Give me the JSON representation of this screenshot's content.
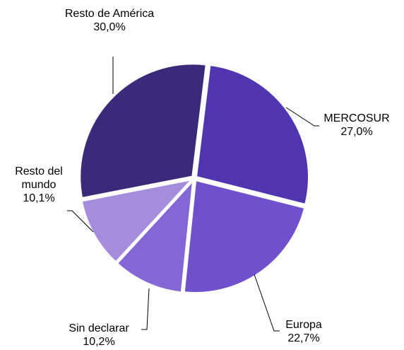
{
  "chart_data": {
    "type": "pie",
    "categories": [
      "MERCOSUR",
      "Europa",
      "Sin declarar",
      "Resto del mundo",
      "Resto de América"
    ],
    "values": [
      27.0,
      22.7,
      10.2,
      10.1,
      30.0
    ],
    "value_labels": [
      "27,0%",
      "22,7%",
      "10,2%",
      "10,1%",
      "30,0%"
    ],
    "colors": [
      "#5035b0",
      "#7050cc",
      "#8466d4",
      "#a58ddc",
      "#3b2a7a"
    ]
  }
}
